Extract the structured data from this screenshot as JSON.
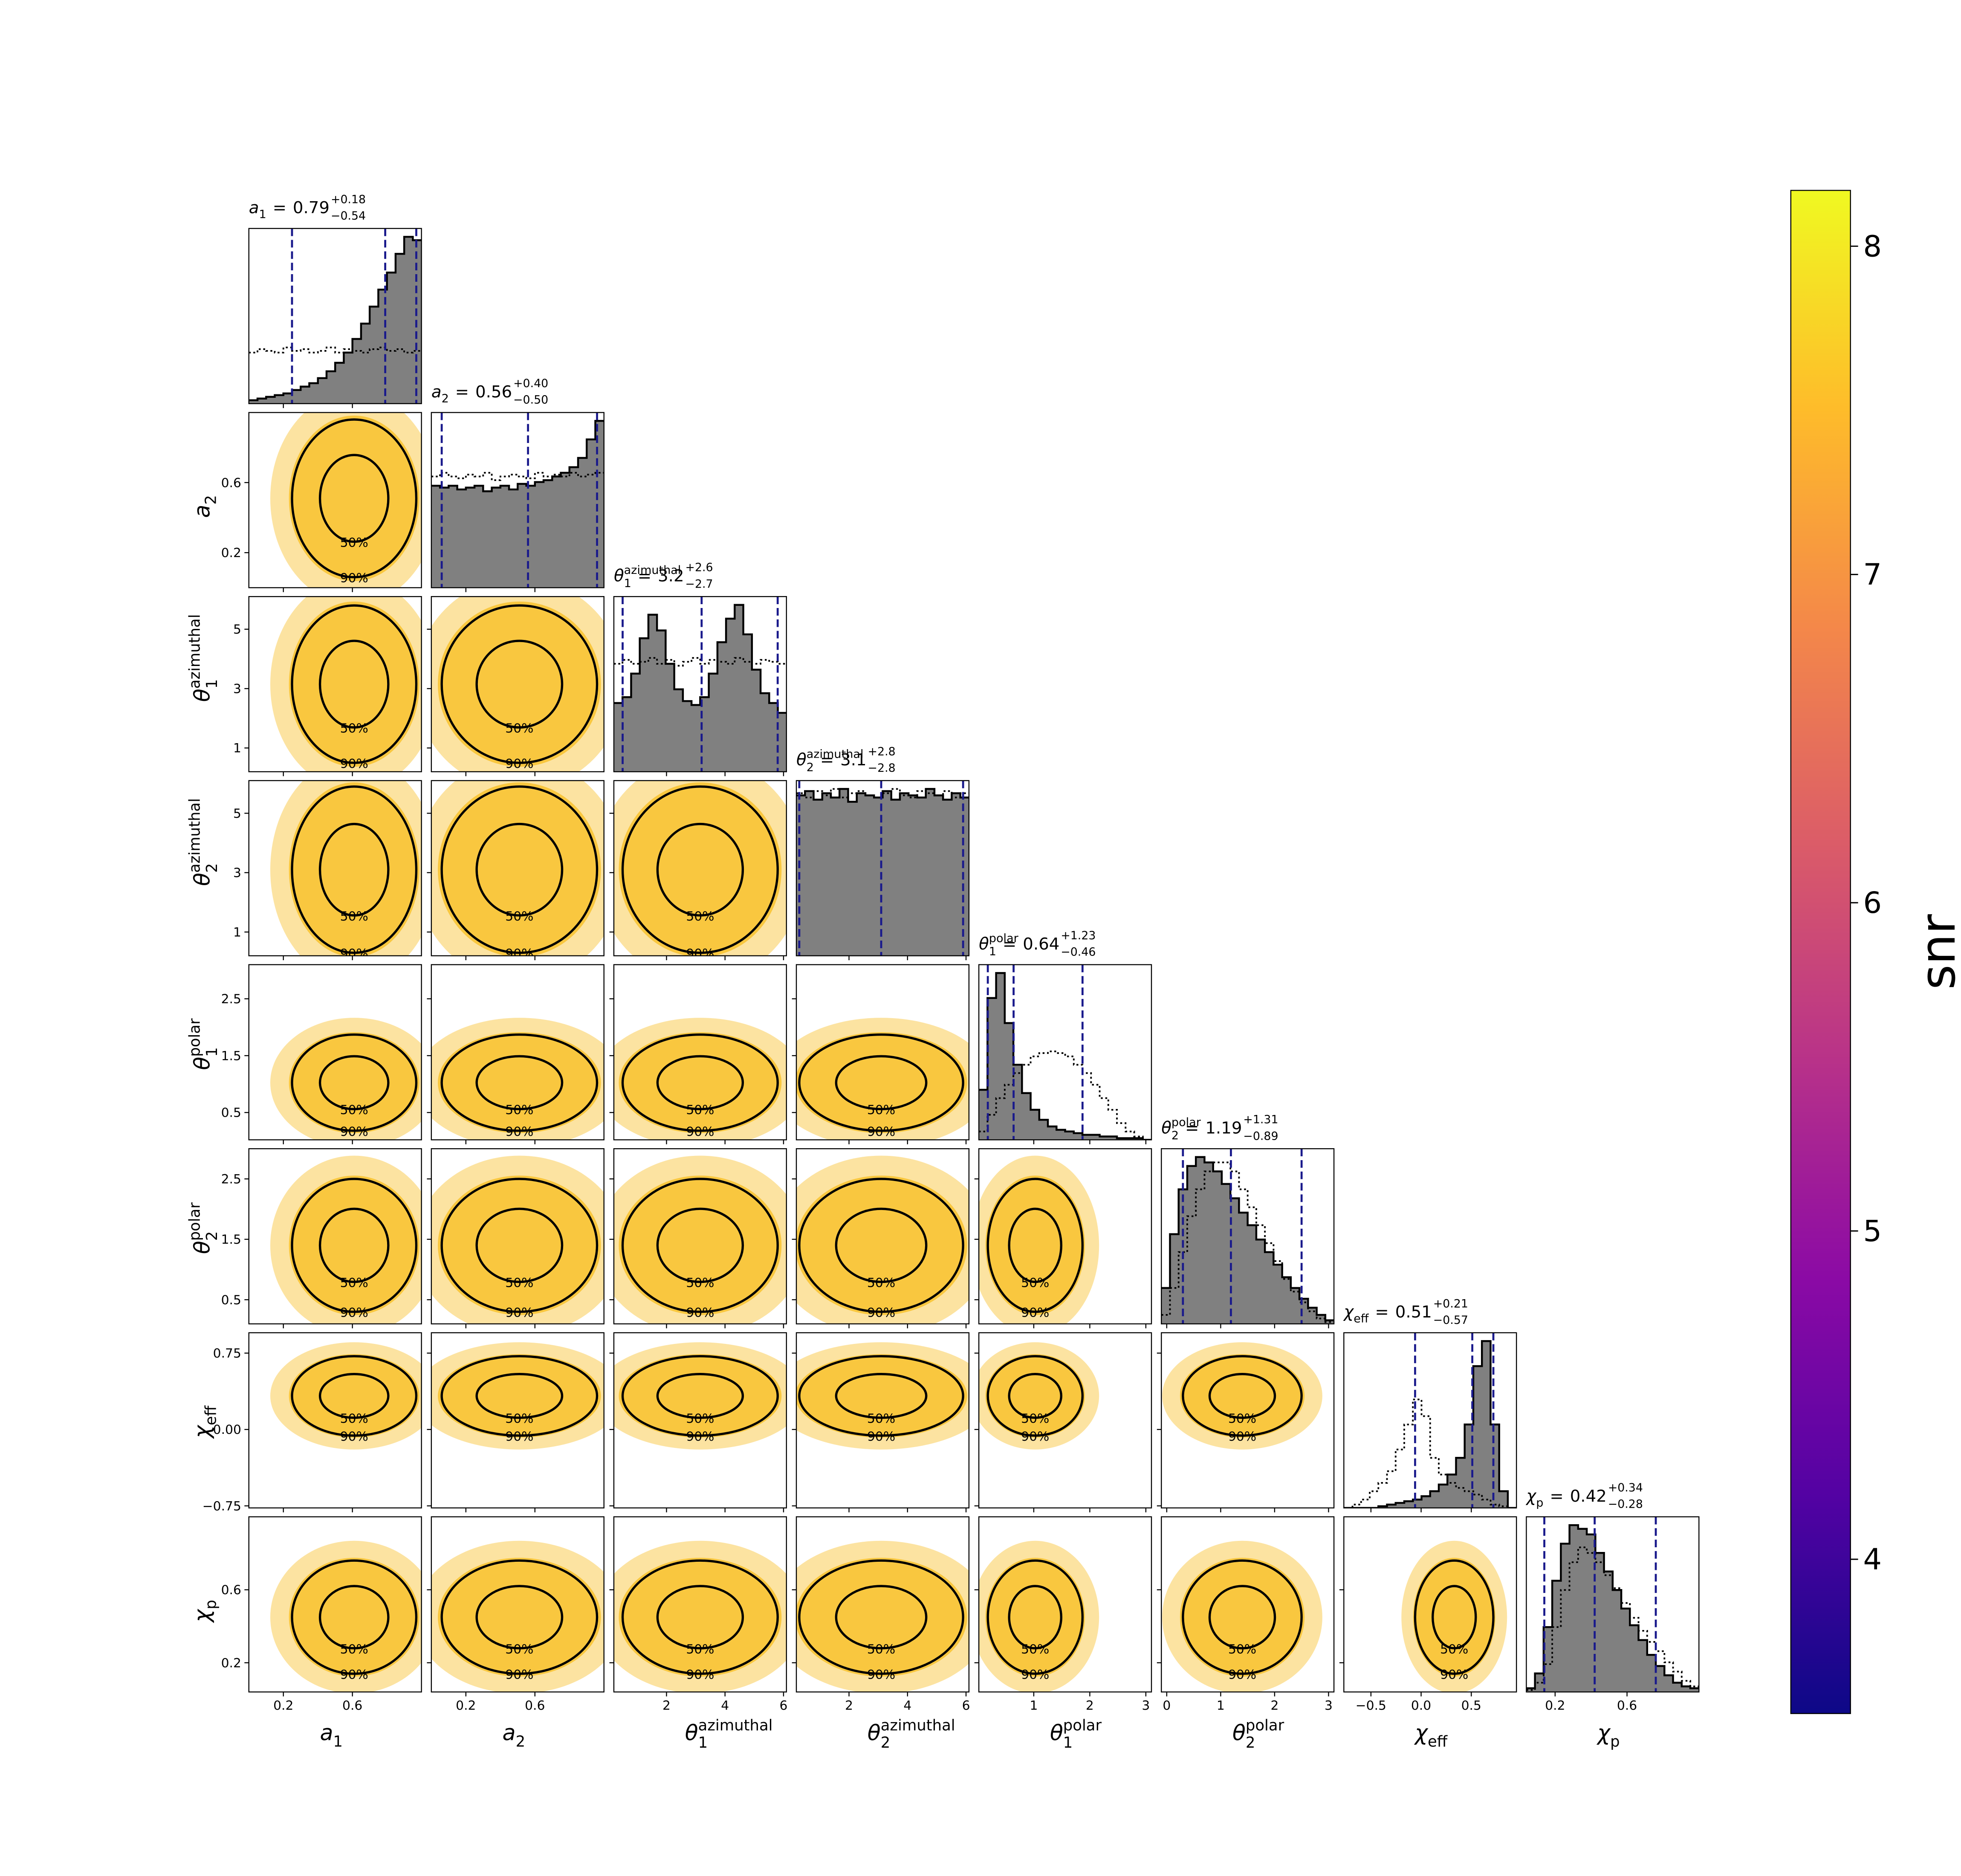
{
  "chart_data": {
    "type": "corner",
    "equals": "=",
    "contour_levels": [
      "50%",
      "90%"
    ],
    "hist_color": "#808080",
    "quantile_color": "#1a1a8c",
    "scatter_color": "#f8c22e",
    "parameters": [
      {
        "label": {
          "symbol": "a",
          "sub": "1"
        },
        "title": {
          "median": 0.79,
          "plus": 0.18,
          "minus": 0.54,
          "plus_label": "+0.18",
          "minus_label": "−0.54"
        },
        "lim": [
          0,
          1
        ],
        "ticks": [
          0.2,
          0.6
        ],
        "posterior": [
          0.02,
          0.03,
          0.04,
          0.05,
          0.06,
          0.08,
          0.1,
          0.12,
          0.15,
          0.19,
          0.24,
          0.3,
          0.38,
          0.47,
          0.57,
          0.67,
          0.77,
          0.88,
          0.98,
          0.96
        ],
        "prior": [
          0.3,
          0.32,
          0.31,
          0.3,
          0.33,
          0.31,
          0.32,
          0.3,
          0.31,
          0.33,
          0.3,
          0.32,
          0.31,
          0.3,
          0.32,
          0.33,
          0.31,
          0.32,
          0.3,
          0.31
        ]
      },
      {
        "label": {
          "symbol": "a",
          "sub": "2"
        },
        "title": {
          "median": 0.56,
          "plus": 0.4,
          "minus": 0.5,
          "plus_label": "+0.40",
          "minus_label": "−0.50"
        },
        "lim": [
          0,
          1
        ],
        "ticks": [
          0.2,
          0.6
        ],
        "posterior": [
          0.55,
          0.54,
          0.55,
          0.53,
          0.54,
          0.55,
          0.52,
          0.54,
          0.55,
          0.53,
          0.56,
          0.55,
          0.57,
          0.58,
          0.6,
          0.62,
          0.65,
          0.7,
          0.8,
          0.9
        ],
        "prior": [
          0.6,
          0.62,
          0.6,
          0.59,
          0.61,
          0.6,
          0.62,
          0.58,
          0.6,
          0.61,
          0.6,
          0.59,
          0.62,
          0.6,
          0.61,
          0.6,
          0.62,
          0.6,
          0.61,
          0.62
        ]
      },
      {
        "label": {
          "symbol": "θ",
          "sub": "1",
          "sup": "azimuthal"
        },
        "title": {
          "median": 3.2,
          "plus": 2.6,
          "minus": 2.7,
          "plus_label": "+2.6",
          "minus_label": "−2.7"
        },
        "lim": [
          0.2,
          6.1
        ],
        "ticks": [
          2,
          4,
          6
        ],
        "yticks": [
          1,
          3,
          5
        ],
        "posterior": [
          0.35,
          0.38,
          0.5,
          0.68,
          0.8,
          0.72,
          0.55,
          0.42,
          0.36,
          0.34,
          0.38,
          0.5,
          0.66,
          0.78,
          0.85,
          0.7,
          0.52,
          0.4,
          0.35,
          0.3
        ],
        "prior": [
          0.55,
          0.57,
          0.55,
          0.56,
          0.58,
          0.55,
          0.57,
          0.54,
          0.56,
          0.58,
          0.55,
          0.57,
          0.56,
          0.55,
          0.58,
          0.56,
          0.55,
          0.57,
          0.56,
          0.55
        ]
      },
      {
        "label": {
          "symbol": "θ",
          "sub": "2",
          "sup": "azimuthal"
        },
        "title": {
          "median": 3.1,
          "plus": 2.8,
          "minus": 2.8,
          "plus_label": "+2.8",
          "minus_label": "−2.8"
        },
        "lim": [
          0.2,
          6.1
        ],
        "ticks": [
          2,
          4,
          6
        ],
        "yticks": [
          1,
          3,
          5
        ],
        "posterior": [
          0.75,
          0.77,
          0.73,
          0.76,
          0.74,
          0.78,
          0.72,
          0.76,
          0.75,
          0.74,
          0.77,
          0.73,
          0.76,
          0.75,
          0.74,
          0.78,
          0.75,
          0.73,
          0.76,
          0.74
        ],
        "prior": [
          0.76,
          0.74,
          0.77,
          0.75,
          0.78,
          0.74,
          0.76,
          0.77,
          0.75,
          0.74,
          0.76,
          0.78,
          0.75,
          0.74,
          0.77,
          0.76,
          0.75,
          0.77,
          0.74,
          0.76
        ]
      },
      {
        "label": {
          "symbol": "θ",
          "sub": "1",
          "sup": "polar"
        },
        "title": {
          "median": 0.64,
          "plus": 1.23,
          "minus": 0.46,
          "plus_label": "+1.23",
          "minus_label": "−0.46"
        },
        "lim": [
          0.02,
          3.1
        ],
        "ticks": [
          1,
          2,
          3
        ],
        "yticks": [
          0.5,
          1.5,
          2.5
        ],
        "posterior": [
          0.3,
          0.85,
          1.0,
          0.7,
          0.45,
          0.28,
          0.18,
          0.12,
          0.08,
          0.06,
          0.05,
          0.04,
          0.03,
          0.03,
          0.02,
          0.02,
          0.01,
          0.01,
          0.01,
          0.0
        ],
        "prior": [
          0.05,
          0.15,
          0.25,
          0.33,
          0.4,
          0.45,
          0.5,
          0.52,
          0.53,
          0.52,
          0.5,
          0.45,
          0.4,
          0.33,
          0.25,
          0.18,
          0.1,
          0.05,
          0.02,
          0.0
        ]
      },
      {
        "label": {
          "symbol": "θ",
          "sub": "2",
          "sup": "polar"
        },
        "title": {
          "median": 1.19,
          "plus": 1.31,
          "minus": 0.89,
          "plus_label": "+1.31",
          "minus_label": "−0.89"
        },
        "lim": [
          -0.1,
          3.1
        ],
        "ticks": [
          0,
          1,
          2,
          3
        ],
        "ylim": [
          0.1,
          3.0
        ],
        "yticks": [
          0.5,
          1.5,
          2.5
        ],
        "posterior": [
          0.2,
          0.5,
          0.75,
          0.88,
          0.93,
          0.9,
          0.85,
          0.78,
          0.7,
          0.62,
          0.55,
          0.47,
          0.4,
          0.33,
          0.26,
          0.2,
          0.14,
          0.09,
          0.05,
          0.02
        ],
        "prior": [
          0.05,
          0.2,
          0.4,
          0.6,
          0.75,
          0.85,
          0.9,
          0.9,
          0.85,
          0.75,
          0.65,
          0.55,
          0.45,
          0.35,
          0.25,
          0.18,
          0.12,
          0.07,
          0.03,
          0.01
        ]
      },
      {
        "label": {
          "symbol": "χ",
          "sub": "eff"
        },
        "title": {
          "median": 0.51,
          "plus": 0.21,
          "minus": 0.57,
          "plus_label": "+0.21",
          "minus_label": "−0.57"
        },
        "lim": [
          -0.77,
          0.95
        ],
        "ticks": [
          {
            "value": -0.5,
            "label": "−0.5"
          },
          {
            "value": 0,
            "label": "0.0"
          },
          0.5
        ],
        "yticks": [
          {
            "value": -0.75,
            "label": "−0.75"
          },
          {
            "value": 0,
            "label": "0.00"
          },
          0.75
        ],
        "posterior": [
          0,
          0,
          0,
          0,
          0.01,
          0.02,
          0.03,
          0.04,
          0.05,
          0.07,
          0.1,
          0.14,
          0.2,
          0.3,
          0.5,
          0.85,
          1.0,
          0.5,
          0.1,
          0.0
        ],
        "prior": [
          0,
          0.02,
          0.05,
          0.1,
          0.15,
          0.22,
          0.35,
          0.5,
          0.65,
          0.55,
          0.3,
          0.2,
          0.15,
          0.12,
          0.1,
          0.08,
          0.05,
          0.02,
          0.01,
          0
        ]
      },
      {
        "label": {
          "symbol": "χ",
          "sub": "p"
        },
        "title": {
          "median": 0.42,
          "plus": 0.34,
          "minus": 0.28,
          "plus_label": "+0.34",
          "minus_label": "−0.28"
        },
        "lim": [
          0.04,
          1.0
        ],
        "ticks": [
          0.2,
          0.6
        ],
        "yticks": [
          0.2,
          0.6
        ],
        "posterior": [
          0.02,
          0.1,
          0.35,
          0.6,
          0.8,
          0.9,
          0.88,
          0.85,
          0.75,
          0.65,
          0.55,
          0.45,
          0.36,
          0.28,
          0.2,
          0.14,
          0.09,
          0.05,
          0.03,
          0.02
        ],
        "prior": [
          0.01,
          0.05,
          0.15,
          0.35,
          0.55,
          0.7,
          0.78,
          0.75,
          0.7,
          0.63,
          0.56,
          0.48,
          0.4,
          0.33,
          0.27,
          0.22,
          0.16,
          0.11,
          0.06,
          0.03
        ]
      }
    ],
    "colorbar": {
      "label": "snr",
      "lim": [
        3.53,
        8.17
      ],
      "ticks": [
        4,
        5,
        6,
        7,
        8
      ],
      "colors": [
        "#0d0887",
        "#5302a3",
        "#8b0aa5",
        "#b83289",
        "#db5c68",
        "#f48849",
        "#febc2a",
        "#f0f921"
      ]
    }
  }
}
